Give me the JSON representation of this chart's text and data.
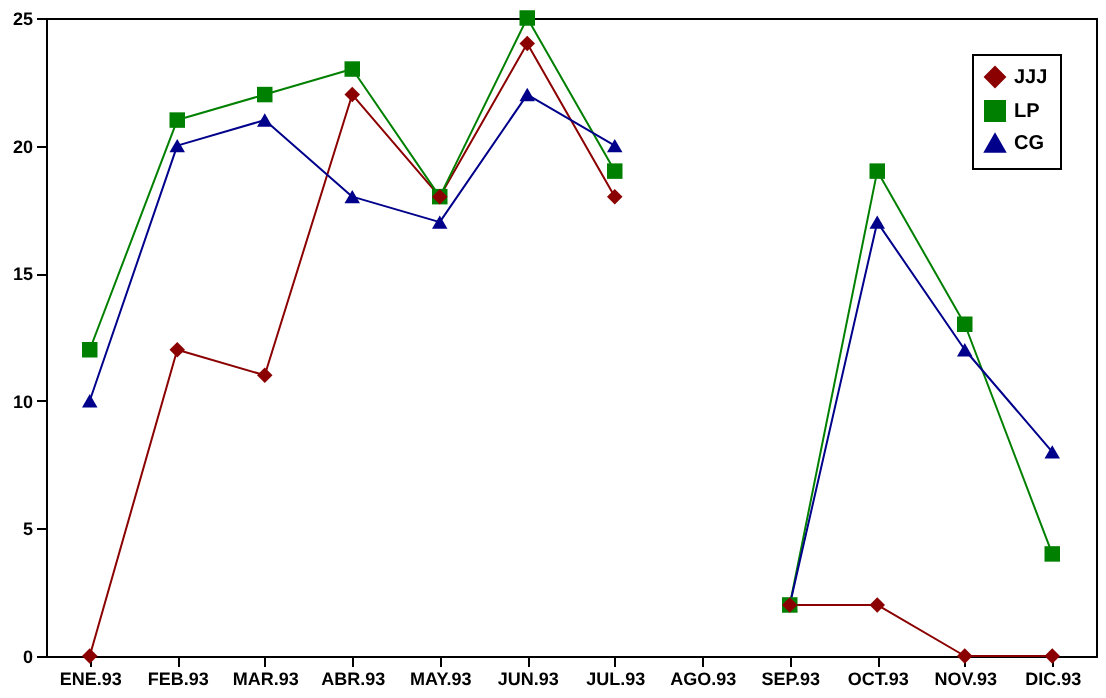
{
  "chart_data": {
    "type": "line",
    "categories": [
      "ENE.93",
      "FEB.93",
      "MAR.93",
      "ABR.93",
      "MAY.93",
      "JUN.93",
      "JUL.93",
      "AGO.93",
      "SEP.93",
      "OCT.93",
      "NOV.93",
      "DIC.93"
    ],
    "series": [
      {
        "name": "JJJ",
        "color": "#8b0000",
        "marker": "diamond",
        "values": [
          0,
          12,
          11,
          22,
          18,
          24,
          18,
          null,
          2,
          2,
          0,
          0
        ]
      },
      {
        "name": "LP",
        "color": "#008000",
        "marker": "square",
        "values": [
          12,
          21,
          22,
          23,
          18,
          25,
          19,
          null,
          2,
          19,
          13,
          4
        ]
      },
      {
        "name": "CG",
        "color": "#00008b",
        "marker": "triangle",
        "values": [
          10,
          20,
          21,
          18,
          17,
          22,
          20,
          null,
          2,
          17,
          12,
          8
        ]
      }
    ],
    "ylim": [
      0,
      25
    ],
    "yticks": [
      0,
      5,
      10,
      15,
      20,
      25
    ],
    "grid": false,
    "legend": "top right",
    "line_style": "solid"
  }
}
